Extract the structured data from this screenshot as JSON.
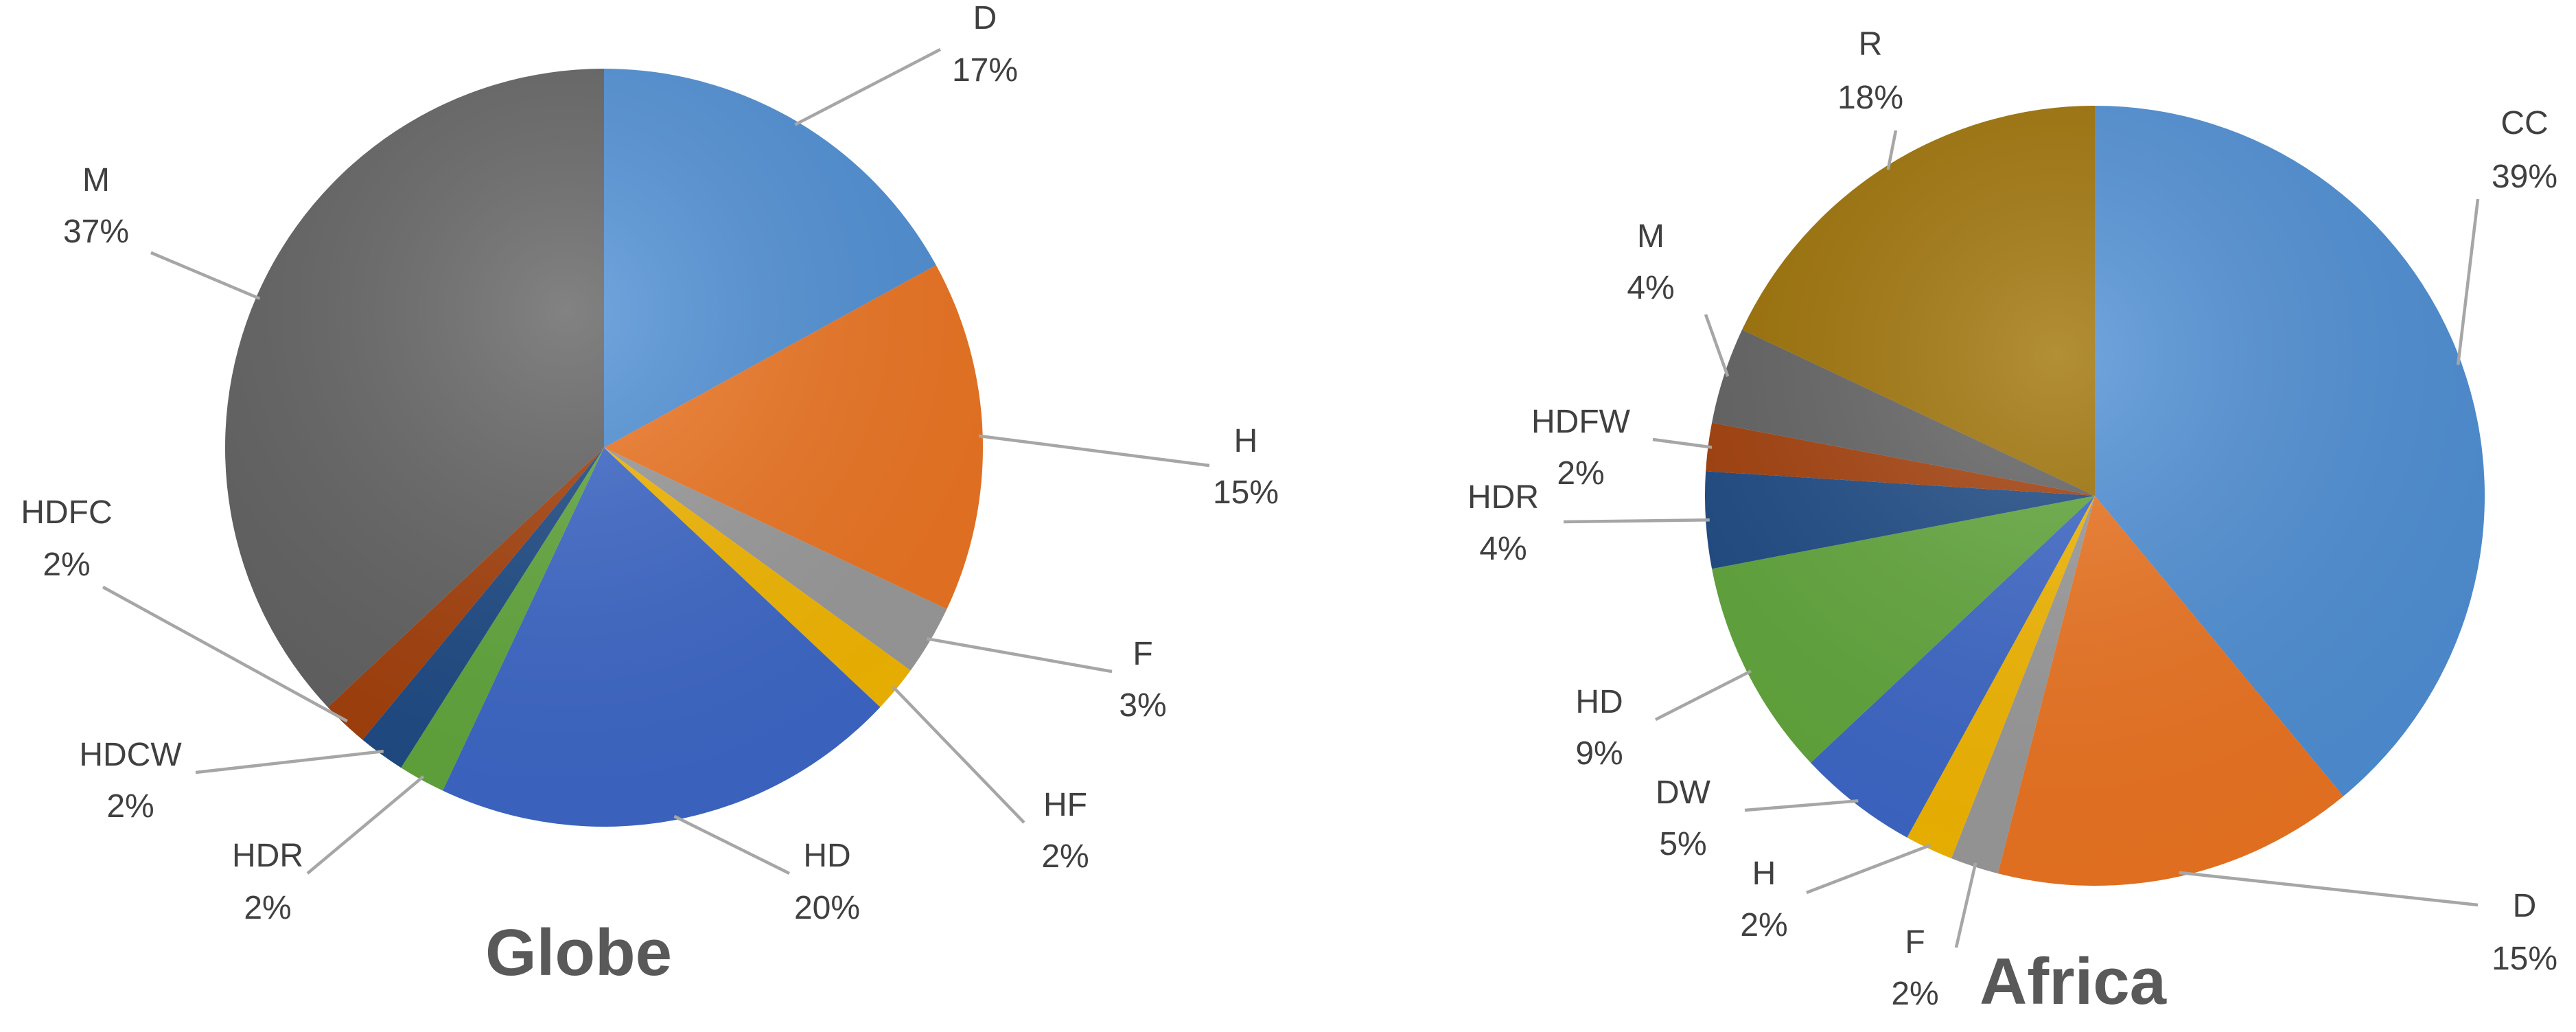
{
  "chart_data": [
    {
      "type": "pie",
      "title": "Globe",
      "start_angle_deg": 0,
      "direction": "clockwise",
      "slices": [
        {
          "label": "D",
          "value": 17,
          "pct": "17%",
          "color": "#4f90d6"
        },
        {
          "label": "H",
          "value": 15,
          "pct": "15%",
          "color": "#ee7521"
        },
        {
          "label": "F",
          "value": 3,
          "pct": "3%",
          "color": "#9b9b9b"
        },
        {
          "label": "HF",
          "value": 2,
          "pct": "2%",
          "color": "#f5b800"
        },
        {
          "label": "HD",
          "value": 20,
          "pct": "20%",
          "color": "#3d68c9"
        },
        {
          "label": "HDR",
          "value": 2,
          "pct": "2%",
          "color": "#62a83c"
        },
        {
          "label": "HDCW",
          "value": 2,
          "pct": "2%",
          "color": "#1e4b86"
        },
        {
          "label": "HDFC",
          "value": 2,
          "pct": "2%",
          "color": "#a5400b"
        },
        {
          "label": "M",
          "value": 37,
          "pct": "37%",
          "color": "#636363"
        }
      ]
    },
    {
      "type": "pie",
      "title": "Africa",
      "start_angle_deg": 0,
      "direction": "clockwise",
      "slices": [
        {
          "label": "CC",
          "value": 39,
          "pct": "39%",
          "color": "#4f90d6"
        },
        {
          "label": "D",
          "value": 15,
          "pct": "15%",
          "color": "#ee7521"
        },
        {
          "label": "F",
          "value": 2,
          "pct": "2%",
          "color": "#9b9b9b"
        },
        {
          "label": "H",
          "value": 2,
          "pct": "2%",
          "color": "#f5b800"
        },
        {
          "label": "DW",
          "value": 5,
          "pct": "5%",
          "color": "#3d68c9"
        },
        {
          "label": "HD",
          "value": 9,
          "pct": "9%",
          "color": "#62a83c"
        },
        {
          "label": "HDR",
          "value": 4,
          "pct": "4%",
          "color": "#1e4b86"
        },
        {
          "label": "HDFW",
          "value": 2,
          "pct": "2%",
          "color": "#a5400b"
        },
        {
          "label": "M",
          "value": 4,
          "pct": "4%",
          "color": "#636363"
        },
        {
          "label": "R",
          "value": 18,
          "pct": "18%",
          "color": "#9f7204"
        }
      ]
    }
  ]
}
